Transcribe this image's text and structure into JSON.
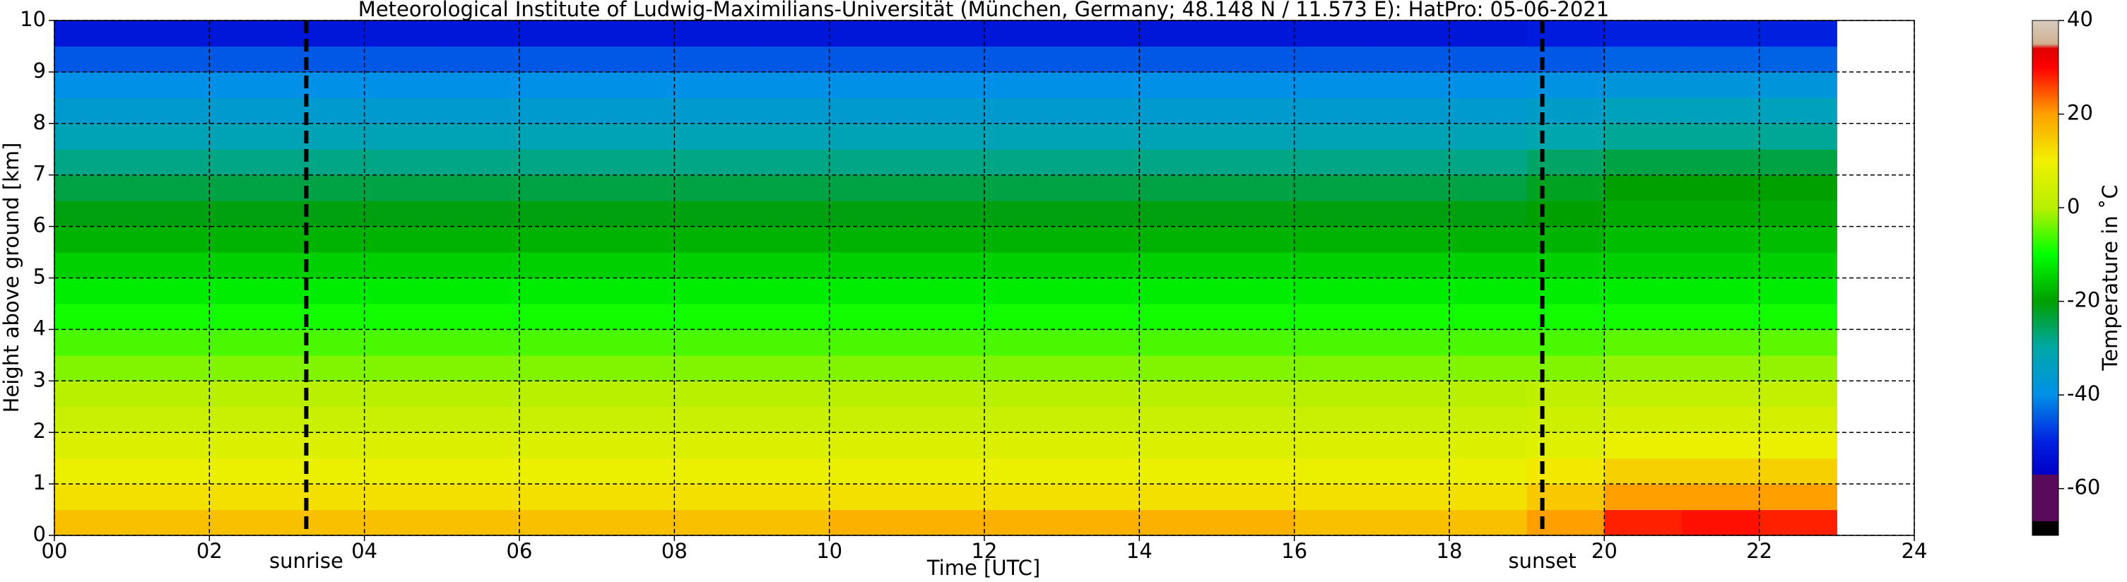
{
  "chart_data": {
    "type": "heatmap",
    "title": "Meteorological Institute of Ludwig-Maximilians-Universität (München, Germany; 48.148 N / 11.573 E):    HatPro: 05-06-2021",
    "xlabel": "Time [UTC]",
    "ylabel": "Height above ground [km]",
    "colorbar_label": "Temperature in ˚C",
    "x": [
      0.5,
      1.5,
      2.5,
      3.5,
      4.5,
      5.5,
      6.5,
      7.5,
      8.5,
      9.5,
      10.5,
      11.5,
      12.5,
      13.5,
      14.5,
      15.5,
      16.5,
      17.5,
      18.5,
      19.5,
      20.5,
      21.5,
      22.5
    ],
    "y": [
      0.25,
      0.75,
      1.25,
      1.75,
      2.25,
      2.75,
      3.25,
      3.75,
      4.25,
      4.75,
      5.25,
      5.75,
      6.25,
      6.75,
      7.25,
      7.75,
      8.25,
      8.75,
      9.25,
      9.75
    ],
    "values": [
      [
        16,
        16,
        16,
        16,
        16,
        16,
        16,
        16,
        16,
        16,
        18,
        18,
        18,
        18,
        18,
        18,
        16,
        16,
        16,
        20,
        28,
        29,
        28
      ],
      [
        12,
        12,
        12,
        12,
        12,
        12,
        12,
        12,
        12,
        12,
        12,
        12,
        12,
        12,
        12,
        12,
        12,
        12,
        12,
        15,
        20,
        20,
        20
      ],
      [
        9,
        9,
        9,
        9,
        9,
        9,
        9,
        9,
        9,
        9,
        9,
        9,
        9,
        9,
        9,
        9,
        9,
        9,
        9,
        11,
        14,
        14,
        14
      ],
      [
        6,
        6,
        6,
        6,
        6,
        6,
        6,
        6,
        6,
        6,
        6,
        6,
        6,
        6,
        6,
        6,
        6,
        6,
        6,
        7,
        9,
        9,
        9
      ],
      [
        3,
        3,
        3,
        3,
        3,
        3,
        3,
        3,
        3,
        3,
        3,
        3,
        3,
        3,
        3,
        3,
        3,
        3,
        3,
        4,
        5,
        5,
        5
      ],
      [
        0,
        0,
        0,
        0,
        0,
        0,
        0,
        0,
        0,
        0,
        0,
        0,
        0,
        0,
        0,
        0,
        0,
        0,
        0,
        1,
        2,
        2,
        2
      ],
      [
        -3,
        -3,
        -3,
        -3,
        -3,
        -3,
        -3,
        -3,
        -3,
        -3,
        -3,
        -3,
        -3,
        -3,
        -3,
        -3,
        -3,
        -3,
        -3,
        -3,
        -2,
        -2,
        -2
      ],
      [
        -6,
        -6,
        -6,
        -6,
        -6,
        -6,
        -6,
        -6,
        -6,
        -6,
        -6,
        -6,
        -6,
        -6,
        -6,
        -6,
        -6,
        -6,
        -6,
        -6,
        -5,
        -5,
        -5
      ],
      [
        -9,
        -9,
        -9,
        -9,
        -9,
        -9,
        -9,
        -9,
        -9,
        -9,
        -9,
        -9,
        -9,
        -9,
        -9,
        -9,
        -9,
        -9,
        -9,
        -9,
        -9,
        -9,
        -9
      ],
      [
        -12,
        -12,
        -12,
        -12,
        -12,
        -12,
        -12,
        -12,
        -12,
        -12,
        -12,
        -12,
        -12,
        -12,
        -12,
        -12,
        -12,
        -12,
        -12,
        -12,
        -12,
        -12,
        -12
      ],
      [
        -15,
        -15,
        -15,
        -15,
        -15,
        -15,
        -15,
        -15,
        -15,
        -15,
        -15,
        -15,
        -15,
        -15,
        -15,
        -15,
        -15,
        -15,
        -15,
        -15,
        -15,
        -15,
        -15
      ],
      [
        -18,
        -18,
        -18,
        -18,
        -18,
        -18,
        -18,
        -18,
        -18,
        -18,
        -18,
        -18,
        -18,
        -18,
        -18,
        -18,
        -18,
        -18,
        -18,
        -18,
        -17,
        -17,
        -17
      ],
      [
        -21,
        -21,
        -21,
        -21,
        -21,
        -21,
        -21,
        -21,
        -21,
        -21,
        -21,
        -21,
        -21,
        -21,
        -21,
        -21,
        -21,
        -21,
        -21,
        -20,
        -19,
        -19,
        -19
      ],
      [
        -24,
        -24,
        -24,
        -24,
        -24,
        -24,
        -24,
        -24,
        -24,
        -24,
        -24,
        -24,
        -24,
        -24,
        -24,
        -24,
        -24,
        -24,
        -24,
        -22,
        -20,
        -20,
        -20
      ],
      [
        -28,
        -28,
        -28,
        -28,
        -28,
        -28,
        -28,
        -28,
        -28,
        -28,
        -28,
        -28,
        -28,
        -28,
        -28,
        -28,
        -28,
        -28,
        -28,
        -26,
        -24,
        -24,
        -24
      ],
      [
        -32,
        -32,
        -32,
        -32,
        -32,
        -32,
        -32,
        -32,
        -32,
        -32,
        -32,
        -32,
        -32,
        -32,
        -32,
        -32,
        -32,
        -32,
        -32,
        -31,
        -29,
        -29,
        -29
      ],
      [
        -36,
        -36,
        -36,
        -36,
        -36,
        -36,
        -36,
        -36,
        -36,
        -36,
        -36,
        -36,
        -36,
        -36,
        -36,
        -36,
        -36,
        -36,
        -36,
        -35,
        -33,
        -33,
        -33
      ],
      [
        -40,
        -40,
        -40,
        -40,
        -40,
        -40,
        -40,
        -40,
        -40,
        -40,
        -40,
        -40,
        -40,
        -40,
        -40,
        -40,
        -40,
        -40,
        -40,
        -39,
        -38,
        -38,
        -38
      ],
      [
        -45,
        -45,
        -45,
        -45,
        -45,
        -45,
        -45,
        -45,
        -45,
        -45,
        -45,
        -45,
        -45,
        -45,
        -45,
        -45,
        -45,
        -45,
        -45,
        -45,
        -44,
        -44,
        -44
      ],
      [
        -52,
        -52,
        -52,
        -52,
        -52,
        -52,
        -52,
        -52,
        -52,
        -52,
        -52,
        -52,
        -52,
        -52,
        -52,
        -52,
        -52,
        -52,
        -52,
        -51,
        -50,
        -50,
        -50
      ]
    ],
    "xlim": [
      0,
      24
    ],
    "xticks": [
      {
        "value": 0,
        "label": "00"
      },
      {
        "value": 2,
        "label": "02"
      },
      {
        "value": 4,
        "label": "04"
      },
      {
        "value": 6,
        "label": "06"
      },
      {
        "value": 8,
        "label": "08"
      },
      10,
      12,
      14,
      16,
      18,
      20,
      22,
      24
    ],
    "ylim": [
      0,
      10
    ],
    "yticks": [
      0,
      1,
      2,
      3,
      4,
      5,
      6,
      7,
      8,
      9,
      10
    ],
    "zlim": [
      -70,
      40
    ],
    "zticks": [
      -60,
      -40,
      -20,
      0,
      20,
      40
    ],
    "colormap": [
      [
        -70,
        "#000000"
      ],
      [
        -67,
        "#000000"
      ],
      [
        -67,
        "#5a0a5a"
      ],
      [
        -57,
        "#5a0a5a"
      ],
      [
        -57,
        "#0000c8"
      ],
      [
        -50,
        "#0020e0"
      ],
      [
        -40,
        "#0090e8"
      ],
      [
        -30,
        "#00a8a8"
      ],
      [
        -20,
        "#00a000"
      ],
      [
        -10,
        "#00ff00"
      ],
      [
        0,
        "#b8f000"
      ],
      [
        10,
        "#f0f000"
      ],
      [
        20,
        "#ffa000"
      ],
      [
        30,
        "#ff0000"
      ],
      [
        34,
        "#e00000"
      ],
      [
        35,
        "#d0b090"
      ],
      [
        40,
        "#d8ccc0"
      ]
    ],
    "grid": true,
    "annotations": [
      {
        "text": "sunrise",
        "x": 3.25
      },
      {
        "text": "sunset",
        "x": 19.2
      }
    ]
  }
}
